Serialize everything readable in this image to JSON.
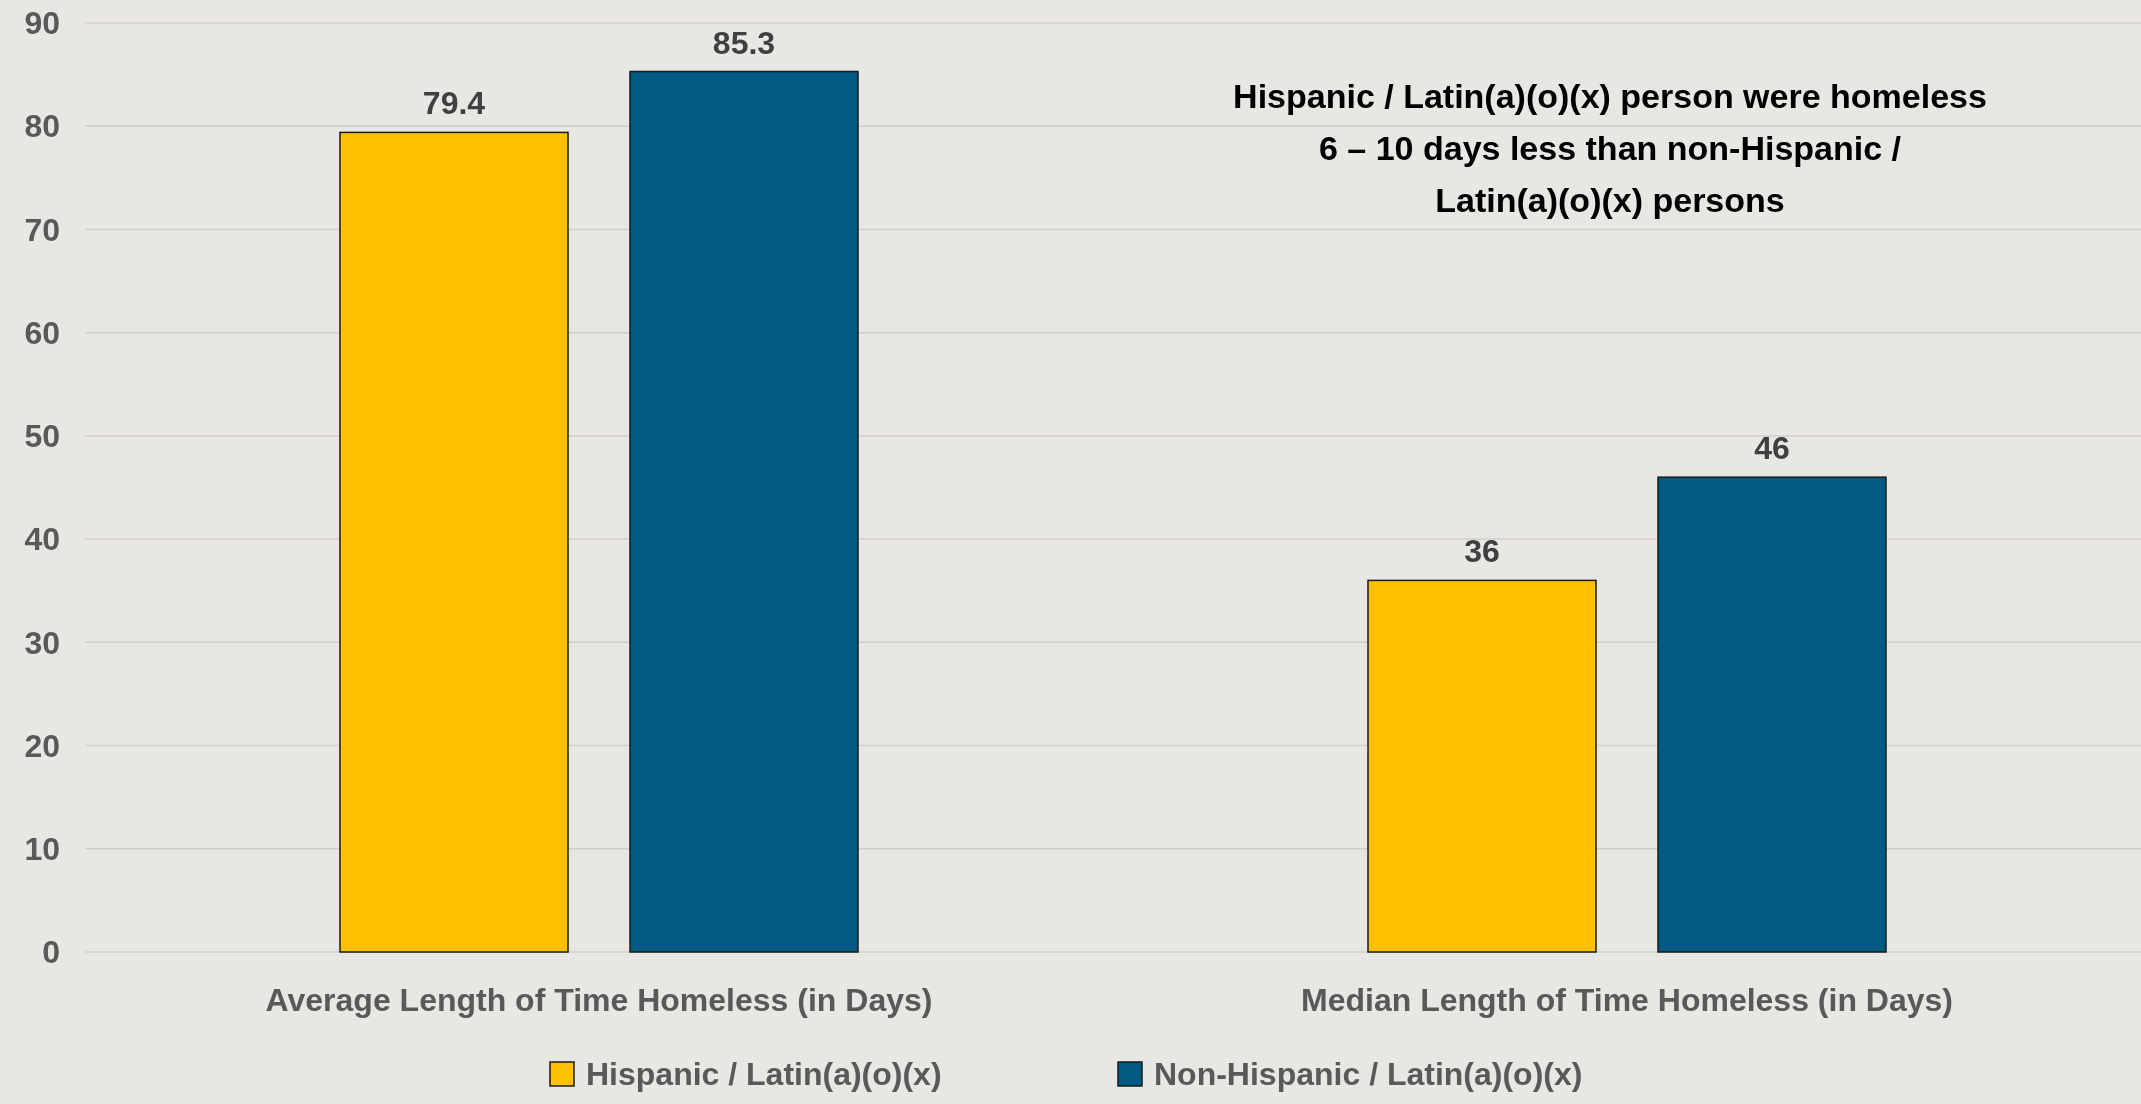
{
  "chart_data": {
    "type": "bar",
    "categories": [
      "Average Length of Time Homeless (in Days)",
      "Median Length of Time Homeless (in Days)"
    ],
    "series": [
      {
        "name": "Hispanic / Latin(a)(o)(x)",
        "color": "#ffc000",
        "values": [
          79.4,
          36
        ]
      },
      {
        "name": "Non-Hispanic / Latin(a)(o)(x)",
        "color": "#005a84",
        "values": [
          85.3,
          46
        ]
      }
    ],
    "ylim": [
      0,
      90
    ],
    "yticks": [
      0,
      10,
      20,
      30,
      40,
      50,
      60,
      70,
      80,
      90
    ],
    "grid": "y",
    "legend": "bottom",
    "data_labels": true,
    "annotations": [
      "Hispanic / Latin(a)(o)(x) person were homeless 6 – 10 days less than non-Hispanic / Latin(a)(o)(x) persons"
    ]
  }
}
